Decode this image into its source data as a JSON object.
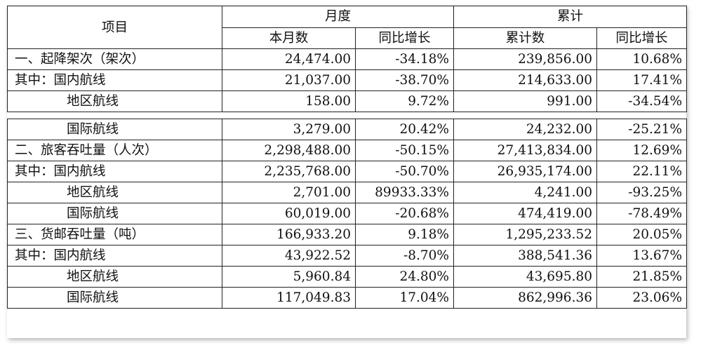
{
  "table": {
    "header": {
      "item": "项目",
      "monthly_group": "月度",
      "cumulative_group": "累计",
      "monthly_count": "本月数",
      "monthly_yoy": "同比增长",
      "cumulative_count": "累计数",
      "cumulative_yoy": "同比增长"
    },
    "rows": [
      {
        "label": "一、起降架次（架次）",
        "month": "24,474.00",
        "month_yoy": "-34.18%",
        "cum": "239,856.00",
        "cum_yoy": "10.68%"
      },
      {
        "label": "其中：国内航线",
        "month": "21,037.00",
        "month_yoy": "-38.70%",
        "cum": "214,633.00",
        "cum_yoy": "17.41%"
      },
      {
        "label": "地区航线",
        "month": "158.00",
        "month_yoy": "9.72%",
        "cum": "991.00",
        "cum_yoy": "-34.54%"
      },
      {
        "label": "国际航线",
        "month": "3,279.00",
        "month_yoy": "20.42%",
        "cum": "24,232.00",
        "cum_yoy": "-25.21%"
      },
      {
        "label": "二、旅客吞吐量（人次）",
        "month": "2,298,488.00",
        "month_yoy": "-50.15%",
        "cum": "27,413,834.00",
        "cum_yoy": "12.69%"
      },
      {
        "label": "其中：国内航线",
        "month": "2,235,768.00",
        "month_yoy": "-50.70%",
        "cum": "26,935,174.00",
        "cum_yoy": "22.11%"
      },
      {
        "label": "地区航线",
        "month": "2,701.00",
        "month_yoy": "89933.33%",
        "cum": "4,241.00",
        "cum_yoy": "-93.25%"
      },
      {
        "label": "国际航线",
        "month": "60,019.00",
        "month_yoy": "-20.68%",
        "cum": "474,419.00",
        "cum_yoy": "-78.49%"
      },
      {
        "label": "三、货邮吞吐量（吨）",
        "month": "166,933.20",
        "month_yoy": "9.18%",
        "cum": "1,295,233.52",
        "cum_yoy": "20.05%"
      },
      {
        "label": "其中：国内航线",
        "month": "43,922.52",
        "month_yoy": "-8.70%",
        "cum": "388,541.36",
        "cum_yoy": "13.67%"
      },
      {
        "label": "地区航线",
        "month": "5,960.84",
        "month_yoy": "24.80%",
        "cum": "43,695.80",
        "cum_yoy": "21.85%"
      },
      {
        "label": "国际航线",
        "month": "117,049.83",
        "month_yoy": "17.04%",
        "cum": "862,996.36",
        "cum_yoy": "23.06%"
      }
    ]
  }
}
